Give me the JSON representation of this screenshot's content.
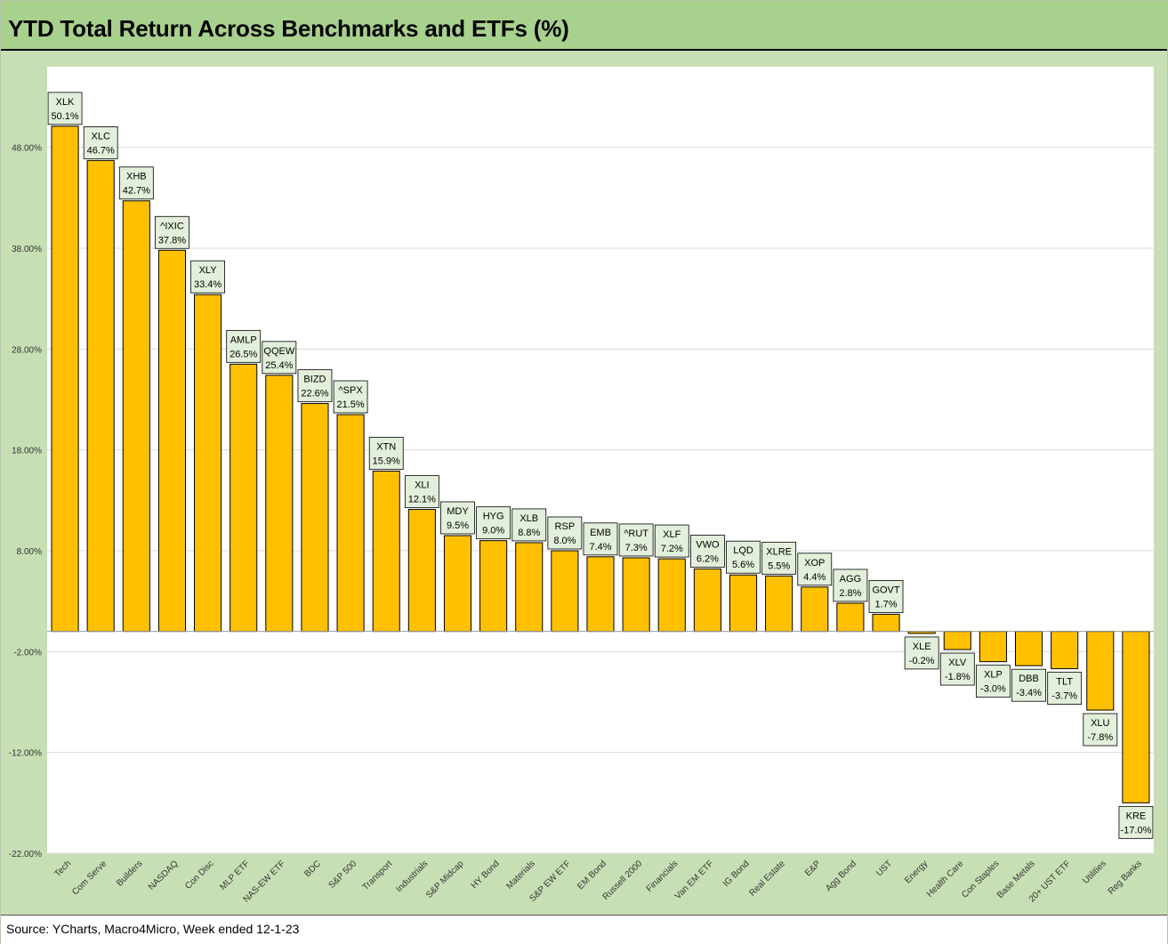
{
  "title": "YTD Total Return Across Benchmarks and ETFs (%)",
  "source": "Source: YCharts, Macro4Micro, Week ended 12-1-23",
  "colors": {
    "bar": "#ffc000",
    "header": "#a9d18e",
    "frame": "#c7dfb4",
    "label_box": "#e2efda"
  },
  "chart_data": {
    "type": "bar",
    "title": "YTD Total Return Across Benchmarks and ETFs (%)",
    "xlabel": "",
    "ylabel": "",
    "ylim": [
      -22,
      56
    ],
    "yticks": [
      {
        "value": 48,
        "label": "48.00%"
      },
      {
        "value": 38,
        "label": "38.00%"
      },
      {
        "value": 28,
        "label": "28.00%"
      },
      {
        "value": 18,
        "label": "18.00%"
      },
      {
        "value": 8,
        "label": "8.00%"
      },
      {
        "value": -2,
        "label": "-2.00%"
      },
      {
        "value": -12,
        "label": "-12.00%"
      },
      {
        "value": -22,
        "label": "-22.00%"
      }
    ],
    "grid": true,
    "legend": "none",
    "categories": [
      "Tech",
      "Com Serve",
      "Builders",
      "NASDAQ",
      "Con Disc",
      "MLP ETF",
      "NAS-EW ETF",
      "BDC",
      "S&P 500",
      "Transport",
      "Industrials",
      "S&P Midcap",
      "HY Bond",
      "Materials",
      "S&P EW ETF",
      "EM Bond",
      "Russell 2000",
      "Financials",
      "Van EM ETF",
      "IG Bond",
      "Real Estate",
      "E&P",
      "Agg Bond",
      "UST",
      "Energy",
      "Health Care",
      "Con Staples",
      "Base Metals",
      "20+ UST ETF",
      "Utilities",
      "Reg Banks"
    ],
    "tickers": [
      "XLK",
      "XLC",
      "XHB",
      "^IXIC",
      "XLY",
      "AMLP",
      "QQEW",
      "BIZD",
      "^SPX",
      "XTN",
      "XLI",
      "MDY",
      "HYG",
      "XLB",
      "RSP",
      "EMB",
      "^RUT",
      "XLF",
      "VWO",
      "LQD",
      "XLRE",
      "XOP",
      "AGG",
      "GOVT",
      "XLE",
      "XLV",
      "XLP",
      "DBB",
      "TLT",
      "XLU",
      "KRE"
    ],
    "values": [
      50.1,
      46.7,
      42.7,
      37.8,
      33.4,
      26.5,
      25.4,
      22.6,
      21.5,
      15.9,
      12.1,
      9.5,
      9.0,
      8.8,
      8.0,
      7.4,
      7.3,
      7.2,
      6.2,
      5.6,
      5.5,
      4.4,
      2.8,
      1.7,
      -0.2,
      -1.8,
      -3.0,
      -3.4,
      -3.7,
      -7.8,
      -17.0
    ],
    "value_labels": [
      "50.1%",
      "46.7%",
      "42.7%",
      "37.8%",
      "33.4%",
      "26.5%",
      "25.4%",
      "22.6%",
      "21.5%",
      "15.9%",
      "12.1%",
      "9.5%",
      "9.0%",
      "8.8%",
      "8.0%",
      "7.4%",
      "7.3%",
      "7.2%",
      "6.2%",
      "5.6%",
      "5.5%",
      "4.4%",
      "2.8%",
      "1.7%",
      "-0.2%",
      "-1.8%",
      "-3.0%",
      "-3.4%",
      "-3.7%",
      "-7.8%",
      "-17.0%"
    ]
  }
}
